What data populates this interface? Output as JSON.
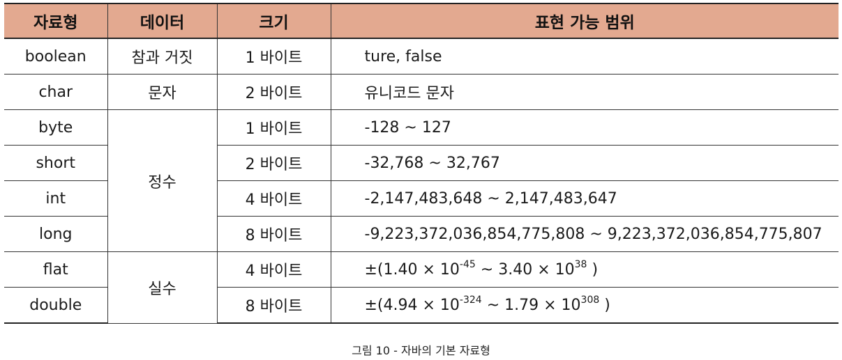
{
  "table": {
    "headers": [
      "자료형",
      "데이터",
      "크기",
      "표현 가능 범위"
    ],
    "rows": [
      {
        "type": "boolean",
        "category": "참과 거짓",
        "size": "1 바이트",
        "range": "ture, false"
      },
      {
        "type": "char",
        "category": "문자",
        "size": "2 바이트",
        "range": "유니코드 문자"
      },
      {
        "type": "byte",
        "category": "정수",
        "size": "1 바이트",
        "range": "-128 ~ 127"
      },
      {
        "type": "short",
        "size": "2 바이트",
        "range": "-32,768 ~ 32,767"
      },
      {
        "type": "int",
        "size": "4 바이트",
        "range": "-2,147,483,648 ~ 2,147,483,647"
      },
      {
        "type": "long",
        "size": "8 바이트",
        "range": "-9,223,372,036,854,775,808 ~ 9,223,372,036,854,775,807"
      },
      {
        "type": "flat",
        "category": "실수",
        "size": "4 바이트",
        "range_parts": {
          "prefix": "±(1.40 × 10",
          "exp1": "-45",
          "middle": " ~ 3.40 × 10",
          "exp2": "38",
          "suffix": " )"
        }
      },
      {
        "type": "double",
        "size": "8 바이트",
        "range_parts": {
          "prefix": "±(4.94 × 10",
          "exp1": "-324",
          "middle": " ~ 1.79 × 10",
          "exp2": "308",
          "suffix": " )"
        }
      }
    ]
  },
  "caption": "그림 10 - 자바의 기본 자료형",
  "colors": {
    "header_background": "#e3a990",
    "border": "#333333"
  }
}
